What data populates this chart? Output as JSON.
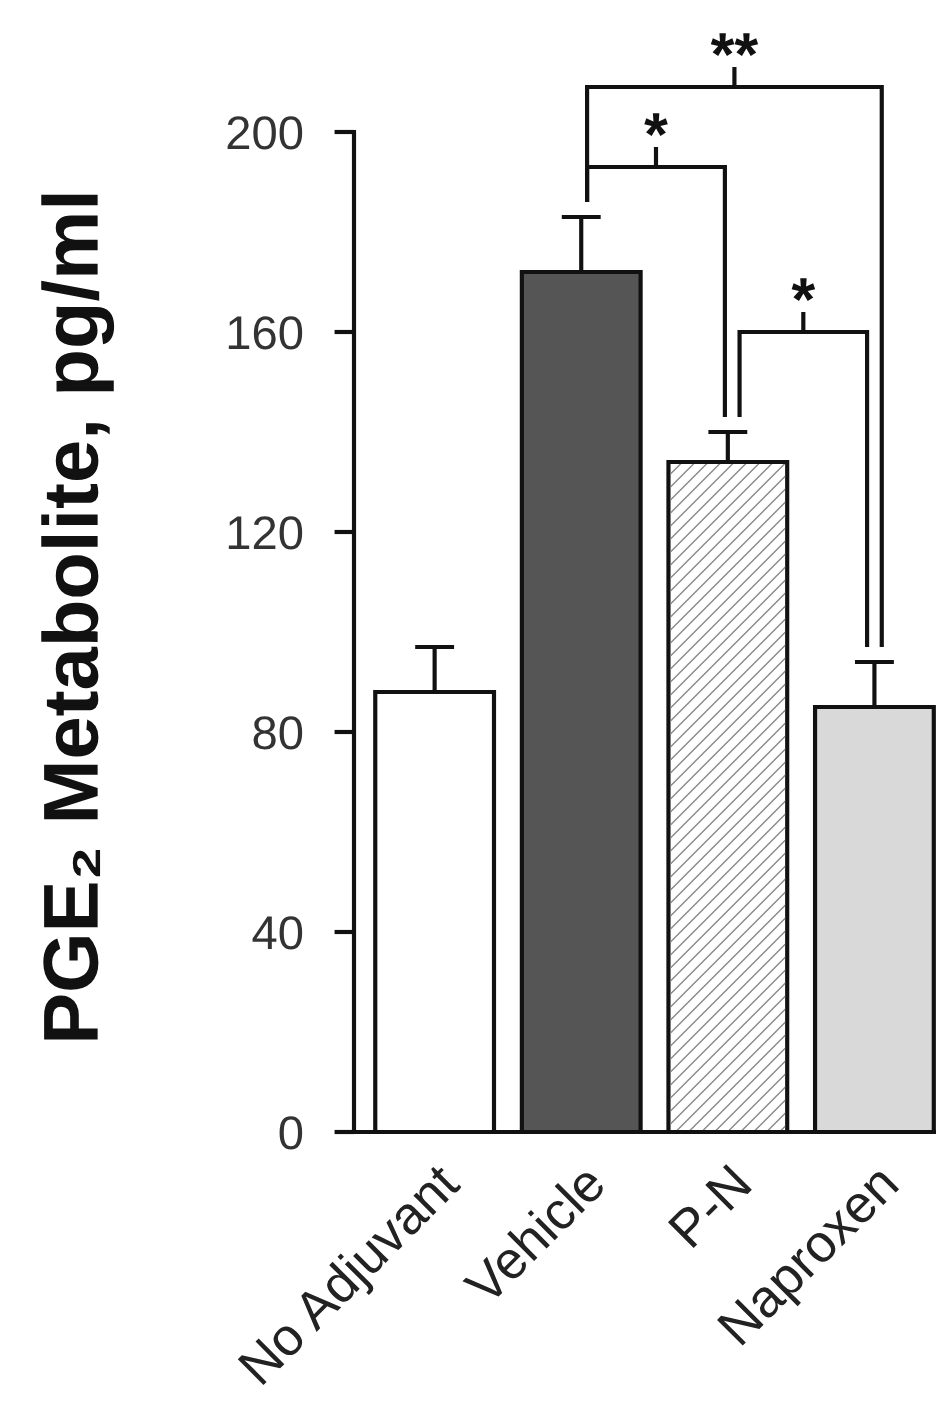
{
  "chart_data": {
    "type": "bar",
    "ylabel": "PGE₂ Metabolite, pg/ml",
    "categories": [
      "No Adjuvant",
      "Vehicle",
      "P-N",
      "Naproxen"
    ],
    "values": [
      88,
      172,
      134,
      85
    ],
    "colors": [
      "#ffffff",
      "#555555",
      "#ffffff",
      "#d9d9d9"
    ],
    "errors": [
      [
        88,
        97
      ],
      [
        172,
        183
      ],
      [
        134,
        140
      ],
      [
        85,
        94
      ]
    ],
    "ylim": [
      0,
      200
    ],
    "yticks": [
      0,
      40,
      80,
      120,
      160,
      200
    ],
    "annotations": [
      "**",
      "*",
      "*"
    ]
  }
}
